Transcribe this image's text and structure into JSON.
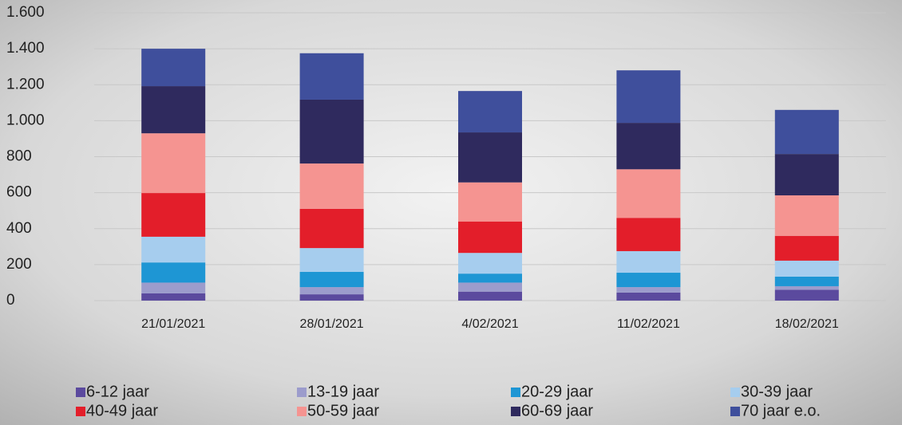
{
  "chart_data": {
    "type": "stacked_bar",
    "categories": [
      "21/01/2021",
      "28/01/2021",
      "4/02/2021",
      "11/02/2021",
      "18/02/2021"
    ],
    "series": [
      {
        "name": "6-12 jaar",
        "color": "#5b4a9e",
        "values": [
          40,
          35,
          50,
          45,
          60
        ]
      },
      {
        "name": "13-19 jaar",
        "color": "#9c9ccc",
        "values": [
          60,
          40,
          50,
          30,
          20
        ]
      },
      {
        "name": "20-29 jaar",
        "color": "#1e96d4",
        "values": [
          112,
          85,
          50,
          80,
          53
        ]
      },
      {
        "name": "30-39 jaar",
        "color": "#a6cdee",
        "values": [
          143,
          132,
          115,
          120,
          89
        ]
      },
      {
        "name": "40-49 jaar",
        "color": "#e31e2a",
        "values": [
          243,
          218,
          175,
          185,
          138
        ]
      },
      {
        "name": "50-59 jaar",
        "color": "#f59491",
        "values": [
          332,
          252,
          217,
          270,
          225
        ]
      },
      {
        "name": "60-69 jaar",
        "color": "#2f2a5e",
        "values": [
          262,
          355,
          278,
          258,
          230
        ]
      },
      {
        "name": "70 jaar e.o.",
        "color": "#3f4f9c",
        "values": [
          208,
          258,
          230,
          292,
          245
        ]
      }
    ],
    "ylim": [
      0,
      1600
    ],
    "yticks": [
      0,
      200,
      400,
      600,
      800,
      {
        "value": 1000,
        "label": "1.000"
      },
      {
        "value": 1200,
        "label": "1.200"
      },
      {
        "value": 1400,
        "label": "1.400"
      },
      {
        "value": 1600,
        "label": "1.600"
      }
    ],
    "grid": true,
    "legend": "bottom"
  }
}
